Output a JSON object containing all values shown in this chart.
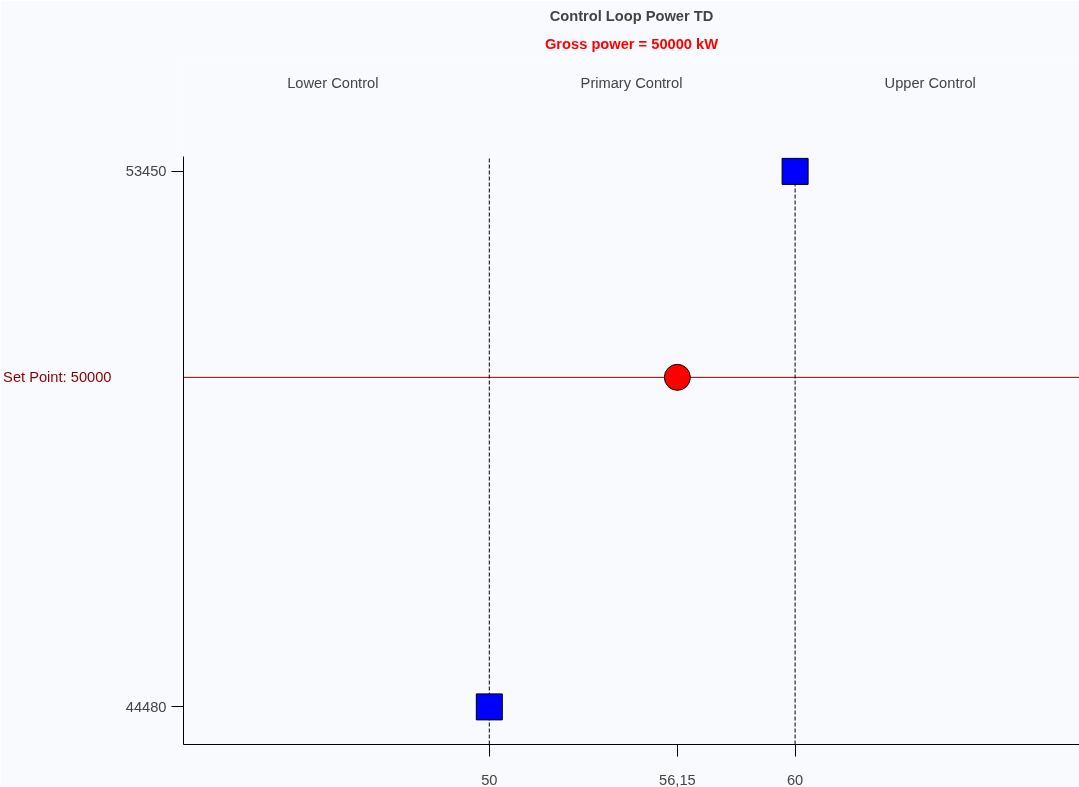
{
  "chart_data": {
    "type": "scatter",
    "title": "Control Loop Power TD",
    "subtitle": "Gross power = 50000 kW",
    "annotations": [
      "Lower Control",
      "Primary Control",
      "Upper Control"
    ],
    "series": [
      {
        "color": "#0000ff",
        "marker": "square",
        "x": [
          50,
          60
        ],
        "values": [
          44480,
          53450
        ]
      },
      {
        "color": "#ff0000",
        "marker": "circle",
        "x": [
          56.15
        ],
        "values": [
          50000
        ]
      }
    ],
    "xlim": [
      40,
      69.3
    ],
    "ylim": [
      43850,
      53700
    ],
    "xticks": [
      50,
      60,
      {
        "value": 56.15,
        "label": "56,15"
      }
    ],
    "yticks": [
      44480,
      53450
    ],
    "ref_lines": [
      {
        "axis": "y",
        "value": 50000,
        "label": "Set Point: 50000",
        "color": "#8b0000",
        "line_style": "solid"
      },
      {
        "axis": "x",
        "value": 50,
        "color": "#000000",
        "line_style": "dashed"
      },
      {
        "axis": "x",
        "value": 60,
        "color": "#000000",
        "line_style": "dashed"
      }
    ],
    "grid": false
  }
}
